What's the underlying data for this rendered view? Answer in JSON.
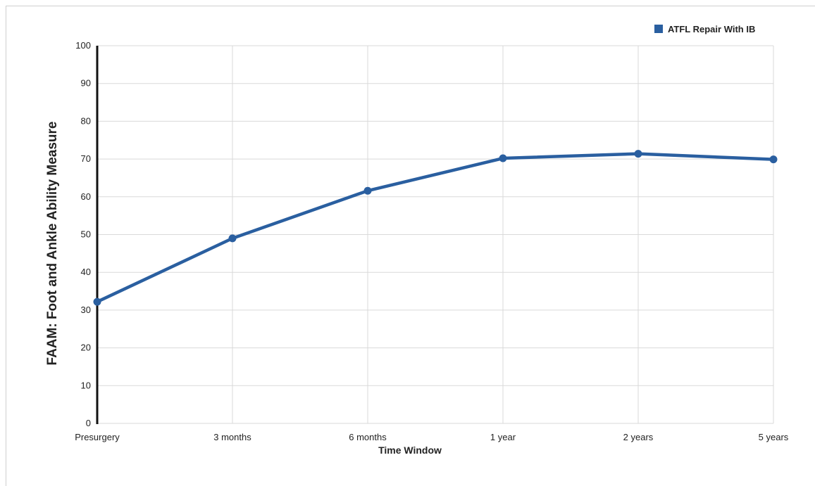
{
  "chart_data": {
    "type": "line",
    "categories": [
      "Presurgery",
      "3 months",
      "6 months",
      "1 year",
      "2 years",
      "5 years"
    ],
    "series": [
      {
        "name": "ATFL Repair With IB",
        "values": [
          32.2,
          49,
          61.6,
          70.2,
          71.4,
          69.9
        ],
        "color": "#2a5fa0"
      }
    ],
    "xlabel": "Time Window",
    "ylabel": "FAAM: Foot and Ankle Ability Measure",
    "ylim": [
      0,
      100
    ],
    "yticks": [
      0,
      10,
      20,
      30,
      40,
      50,
      60,
      70,
      80,
      90,
      100
    ],
    "grid": true,
    "legend_position": "top-right",
    "gridColor": "#d9d9d9",
    "axisColor": "#111111"
  }
}
